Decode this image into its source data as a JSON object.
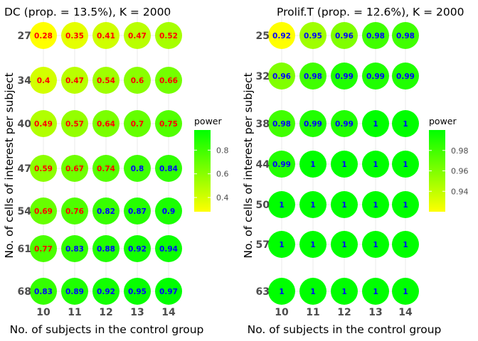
{
  "chart_data": [
    {
      "type": "scatter",
      "title": "DC (prop. = 13.5%), K = 2000",
      "xlabel": "No. of subjects in the control group",
      "ylabel": "No. of cells of interest per subject",
      "x_categories": [
        "10",
        "11",
        "12",
        "13",
        "14"
      ],
      "y_categories": [
        "27",
        "34",
        "40",
        "47",
        "54",
        "61",
        "68"
      ],
      "values": [
        [
          0.28,
          0.35,
          0.41,
          0.47,
          0.52
        ],
        [
          0.4,
          0.47,
          0.54,
          0.6,
          0.66
        ],
        [
          0.49,
          0.57,
          0.64,
          0.7,
          0.75
        ],
        [
          0.59,
          0.67,
          0.74,
          0.8,
          0.84
        ],
        [
          0.69,
          0.76,
          0.82,
          0.87,
          0.9
        ],
        [
          0.77,
          0.83,
          0.88,
          0.92,
          0.94
        ],
        [
          0.83,
          0.89,
          0.92,
          0.95,
          0.97
        ]
      ],
      "legend": {
        "title": "power",
        "placement": "right",
        "range": [
          0.28,
          0.97
        ],
        "ticks": [
          0.4,
          0.6,
          0.8
        ],
        "tick_labels": [
          "0.4",
          "0.6",
          "0.8"
        ],
        "colors": [
          "#ffff00",
          "#00ff00"
        ]
      },
      "label_colors": {
        "low": "#ff0000",
        "high": "#0000ff",
        "threshold": 0.8
      }
    },
    {
      "type": "scatter",
      "title": "Prolif.T (prop. = 12.6%), K = 2000",
      "xlabel": "No. of subjects in the control group",
      "ylabel": "No. of cells of interest per subject",
      "x_categories": [
        "10",
        "11",
        "12",
        "13",
        "14"
      ],
      "y_categories": [
        "25",
        "32",
        "38",
        "44",
        "50",
        "57",
        "63"
      ],
      "values": [
        [
          0.92,
          0.95,
          0.96,
          0.98,
          0.98
        ],
        [
          0.96,
          0.98,
          0.99,
          0.99,
          0.99
        ],
        [
          0.98,
          0.99,
          0.99,
          1,
          1
        ],
        [
          0.99,
          1,
          1,
          1,
          1
        ],
        [
          1,
          1,
          1,
          1,
          1
        ],
        [
          1,
          1,
          1,
          1,
          1
        ],
        [
          1,
          1,
          1,
          1,
          1
        ]
      ],
      "legend": {
        "title": "power",
        "placement": "right",
        "range": [
          0.92,
          1
        ],
        "ticks": [
          0.94,
          0.96,
          0.98
        ],
        "tick_labels": [
          "0.94",
          "0.96",
          "0.98"
        ],
        "colors": [
          "#ffff00",
          "#00ff00"
        ]
      },
      "label_colors": {
        "low": "#ff0000",
        "high": "#0000ff",
        "threshold": 0.8
      }
    }
  ]
}
